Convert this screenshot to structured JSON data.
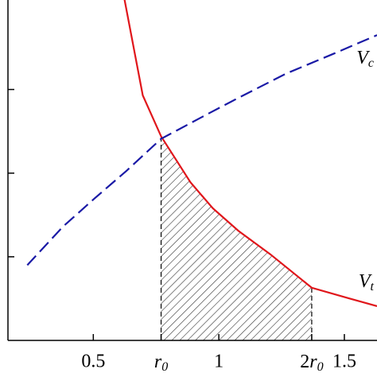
{
  "chart_data": {
    "type": "line",
    "x_scale": "linear",
    "xlim": [
      0.16,
      1.63
    ],
    "ylim": [
      0,
      4.07
    ],
    "xticks": [
      0.5,
      {
        "value": 0.77,
        "label": "r0"
      },
      1,
      {
        "value": 1.37,
        "label": "2r0"
      },
      1.5
    ],
    "yticks": [
      1,
      2,
      3
    ],
    "ytick_labels": false,
    "series": [
      {
        "name": "Vt",
        "color": "#e0161b",
        "dash": "solid",
        "x": [
          0.624,
          0.697,
          0.77,
          0.887,
          0.976,
          1.078,
          1.205,
          1.37,
          1.522,
          1.63
        ],
        "values": [
          4.08,
          2.93,
          2.44,
          1.89,
          1.58,
          1.31,
          1.03,
          0.63,
          0.5,
          0.41
        ]
      },
      {
        "name": "Vc",
        "color": "#1a1aa6",
        "dash": "dashed",
        "x": [
          0.237,
          0.379,
          0.506,
          0.633,
          0.77,
          0.951,
          1.078,
          1.268,
          1.459,
          1.63
        ],
        "values": [
          0.9,
          1.36,
          1.7,
          2.03,
          2.41,
          2.7,
          2.9,
          3.19,
          3.43,
          3.65
        ]
      }
    ],
    "shade": {
      "series": 0,
      "from": 0.77,
      "to": 1.37,
      "pattern": "hatch"
    }
  }
}
